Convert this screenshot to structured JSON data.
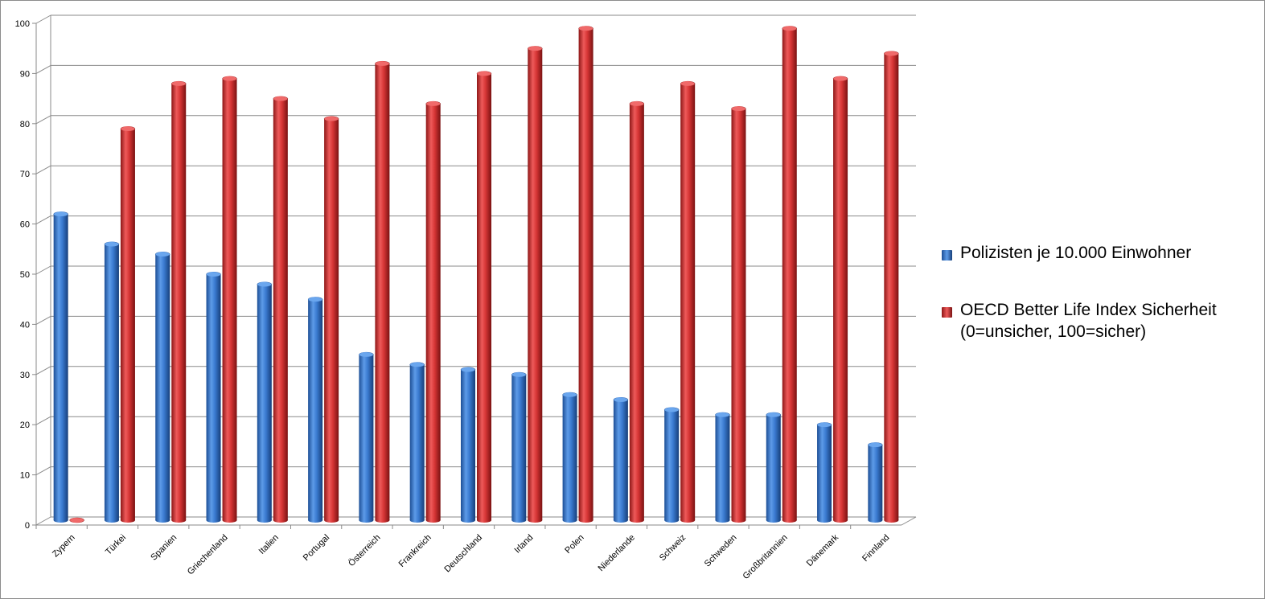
{
  "chart_data": {
    "type": "bar",
    "categories": [
      "Zypern",
      "Türkei",
      "Spanien",
      "Griechenland",
      "Italien",
      "Portugal",
      "Österreich",
      "Frankreich",
      "Deutschland",
      "Irland",
      "Polen",
      "Niederlande",
      "Schweiz",
      "Schweden",
      "Großbritannien",
      "Dänemark",
      "Finnland"
    ],
    "series": [
      {
        "name": "Polizisten je 10.000 Einwohner",
        "color": "#2f6fc4",
        "values": [
          61,
          55,
          53,
          49,
          47,
          44,
          33,
          31,
          30,
          29,
          25,
          24,
          22,
          21,
          21,
          19,
          15
        ]
      },
      {
        "name": "OECD Better Life Index Sicherheit",
        "name_line2": "(0=unsicher, 100=sicher)",
        "color": "#cc2b2b",
        "values": [
          0,
          78,
          87,
          88,
          84,
          80,
          91,
          83,
          89,
          94,
          98,
          83,
          87,
          82,
          98,
          88,
          93
        ]
      }
    ],
    "ylim": [
      0,
      100
    ],
    "yticks": [
      "0",
      "10",
      "20",
      "30",
      "40",
      "50",
      "60",
      "70",
      "80",
      "90",
      "100"
    ],
    "grid": true,
    "legend_position": "right",
    "style": "3d-cylinder"
  }
}
